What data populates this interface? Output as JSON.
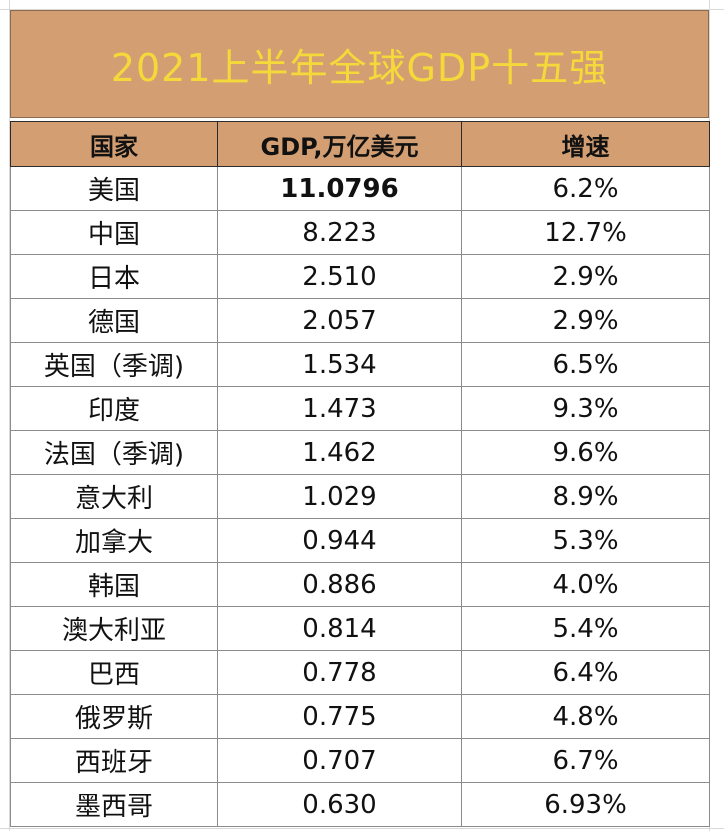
{
  "title": "2021上半年全球GDP十五强",
  "headers": [
    "国家",
    "GDP,万亿美元",
    "增速"
  ],
  "rows": [
    {
      "country": "美国",
      "gdp": "11.0796",
      "growth": "6.2%"
    },
    {
      "country": "中国",
      "gdp": "8.223",
      "growth": "12.7%"
    },
    {
      "country": "日本",
      "gdp": "2.510",
      "growth": "2.9%"
    },
    {
      "country": "德国",
      "gdp": "2.057",
      "growth": "2.9%"
    },
    {
      "country": "英国（季调)",
      "gdp": "1.534",
      "growth": "6.5%"
    },
    {
      "country": "印度",
      "gdp": "1.473",
      "growth": "9.3%"
    },
    {
      "country": "法国（季调)",
      "gdp": "1.462",
      "growth": "9.6%"
    },
    {
      "country": "意大利",
      "gdp": "1.029",
      "growth": "8.9%"
    },
    {
      "country": "加拿大",
      "gdp": "0.944",
      "growth": "5.3%"
    },
    {
      "country": "韩国",
      "gdp": "0.886",
      "growth": "4.0%"
    },
    {
      "country": "澳大利亚",
      "gdp": "0.814",
      "growth": "5.4%"
    },
    {
      "country": "巴西",
      "gdp": "0.778",
      "growth": "6.4%"
    },
    {
      "country": "俄罗斯",
      "gdp": "0.775",
      "growth": "4.8%"
    },
    {
      "country": "西班牙",
      "gdp": "0.707",
      "growth": "6.7%"
    },
    {
      "country": "墨西哥",
      "gdp": "0.630",
      "growth": "6.93%"
    }
  ],
  "colors": {
    "header_fill": "#d39f72",
    "title_text": "#f5d93a"
  }
}
